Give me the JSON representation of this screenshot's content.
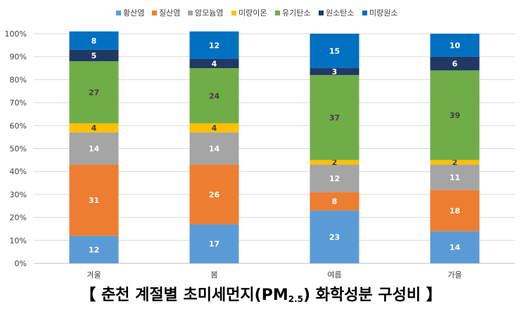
{
  "chart_data": {
    "type": "bar",
    "stacked": true,
    "percent": true,
    "categories": [
      "겨울",
      "봄",
      "여름",
      "가을"
    ],
    "series": [
      {
        "name": "황산염",
        "color": "#5b9bd5",
        "values": [
          12,
          17,
          23,
          14
        ]
      },
      {
        "name": "질산염",
        "color": "#ed7d31",
        "values": [
          31,
          26,
          8,
          18
        ]
      },
      {
        "name": "암모늄염",
        "color": "#a5a5a5",
        "values": [
          14,
          14,
          12,
          11
        ]
      },
      {
        "name": "미량이온",
        "color": "#ffc000",
        "values": [
          4,
          4,
          2,
          2
        ]
      },
      {
        "name": "유기탄소",
        "color": "#70ad47",
        "values": [
          27,
          24,
          37,
          39
        ]
      },
      {
        "name": "원소탄소",
        "color": "#203864",
        "values": [
          5,
          4,
          3,
          6
        ]
      },
      {
        "name": "미량원소",
        "color": "#0070c0",
        "values": [
          8,
          12,
          15,
          10
        ]
      }
    ],
    "yticks": [
      "0%",
      "10%",
      "20%",
      "30%",
      "40%",
      "50%",
      "60%",
      "70%",
      "80%",
      "90%",
      "100%"
    ],
    "ylim": [
      0,
      100
    ],
    "legend_position": "top",
    "grid": true
  },
  "title": {
    "prefix": "【 춘천 계절별 초미세먼지(PM",
    "subscript": "2.5",
    "suffix": ") 화학성분 구성비 】"
  }
}
